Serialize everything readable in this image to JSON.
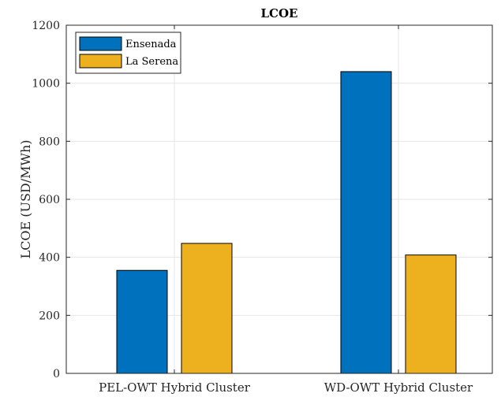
{
  "chart_data": {
    "type": "bar",
    "title": "LCOE",
    "xlabel": "",
    "ylabel": "LCOE (USD/MWh)",
    "categories": [
      "PEL-OWT Hybrid Cluster",
      "WD-OWT Hybrid Cluster"
    ],
    "series": [
      {
        "name": "Ensenada",
        "values": [
          355,
          1040
        ],
        "color": "#0072BD"
      },
      {
        "name": "La Serena",
        "values": [
          448,
          408
        ],
        "color": "#EDB120"
      }
    ],
    "ylim": [
      0,
      1200
    ],
    "yticks": [
      0,
      200,
      400,
      600,
      800,
      1000,
      1200
    ],
    "grid": true,
    "legend_position": "top-left"
  }
}
